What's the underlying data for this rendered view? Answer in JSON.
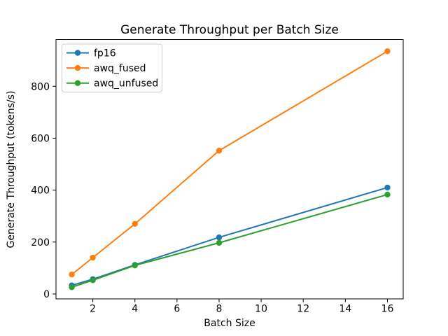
{
  "figure": {
    "background": "#ffffff"
  },
  "chart_data": {
    "type": "line",
    "title": "Generate Throughput per Batch Size",
    "xlabel": "Batch Size",
    "ylabel": "Generate Throughput (tokens/s)",
    "x": [
      1,
      2,
      4,
      8,
      16
    ],
    "series": [
      {
        "name": "fp16",
        "color": "#1f77b4",
        "values": [
          33,
          57,
          112,
          218,
          410
        ]
      },
      {
        "name": "awq_fused",
        "color": "#ff7f0e",
        "values": [
          75,
          140,
          270,
          552,
          935
        ]
      },
      {
        "name": "awq_unfused",
        "color": "#2ca02c",
        "values": [
          26,
          53,
          110,
          197,
          383
        ]
      }
    ],
    "x_ticks": [
      2,
      4,
      6,
      8,
      10,
      12,
      14,
      16
    ],
    "y_ticks": [
      0,
      200,
      400,
      600,
      800
    ],
    "xlim": [
      0.25,
      16.75
    ],
    "ylim": [
      -19,
      980
    ],
    "grid": false,
    "legend_position": "upper left",
    "marker": "circle",
    "axis_color": "#000000",
    "legend_border_color": "#cccccc"
  }
}
